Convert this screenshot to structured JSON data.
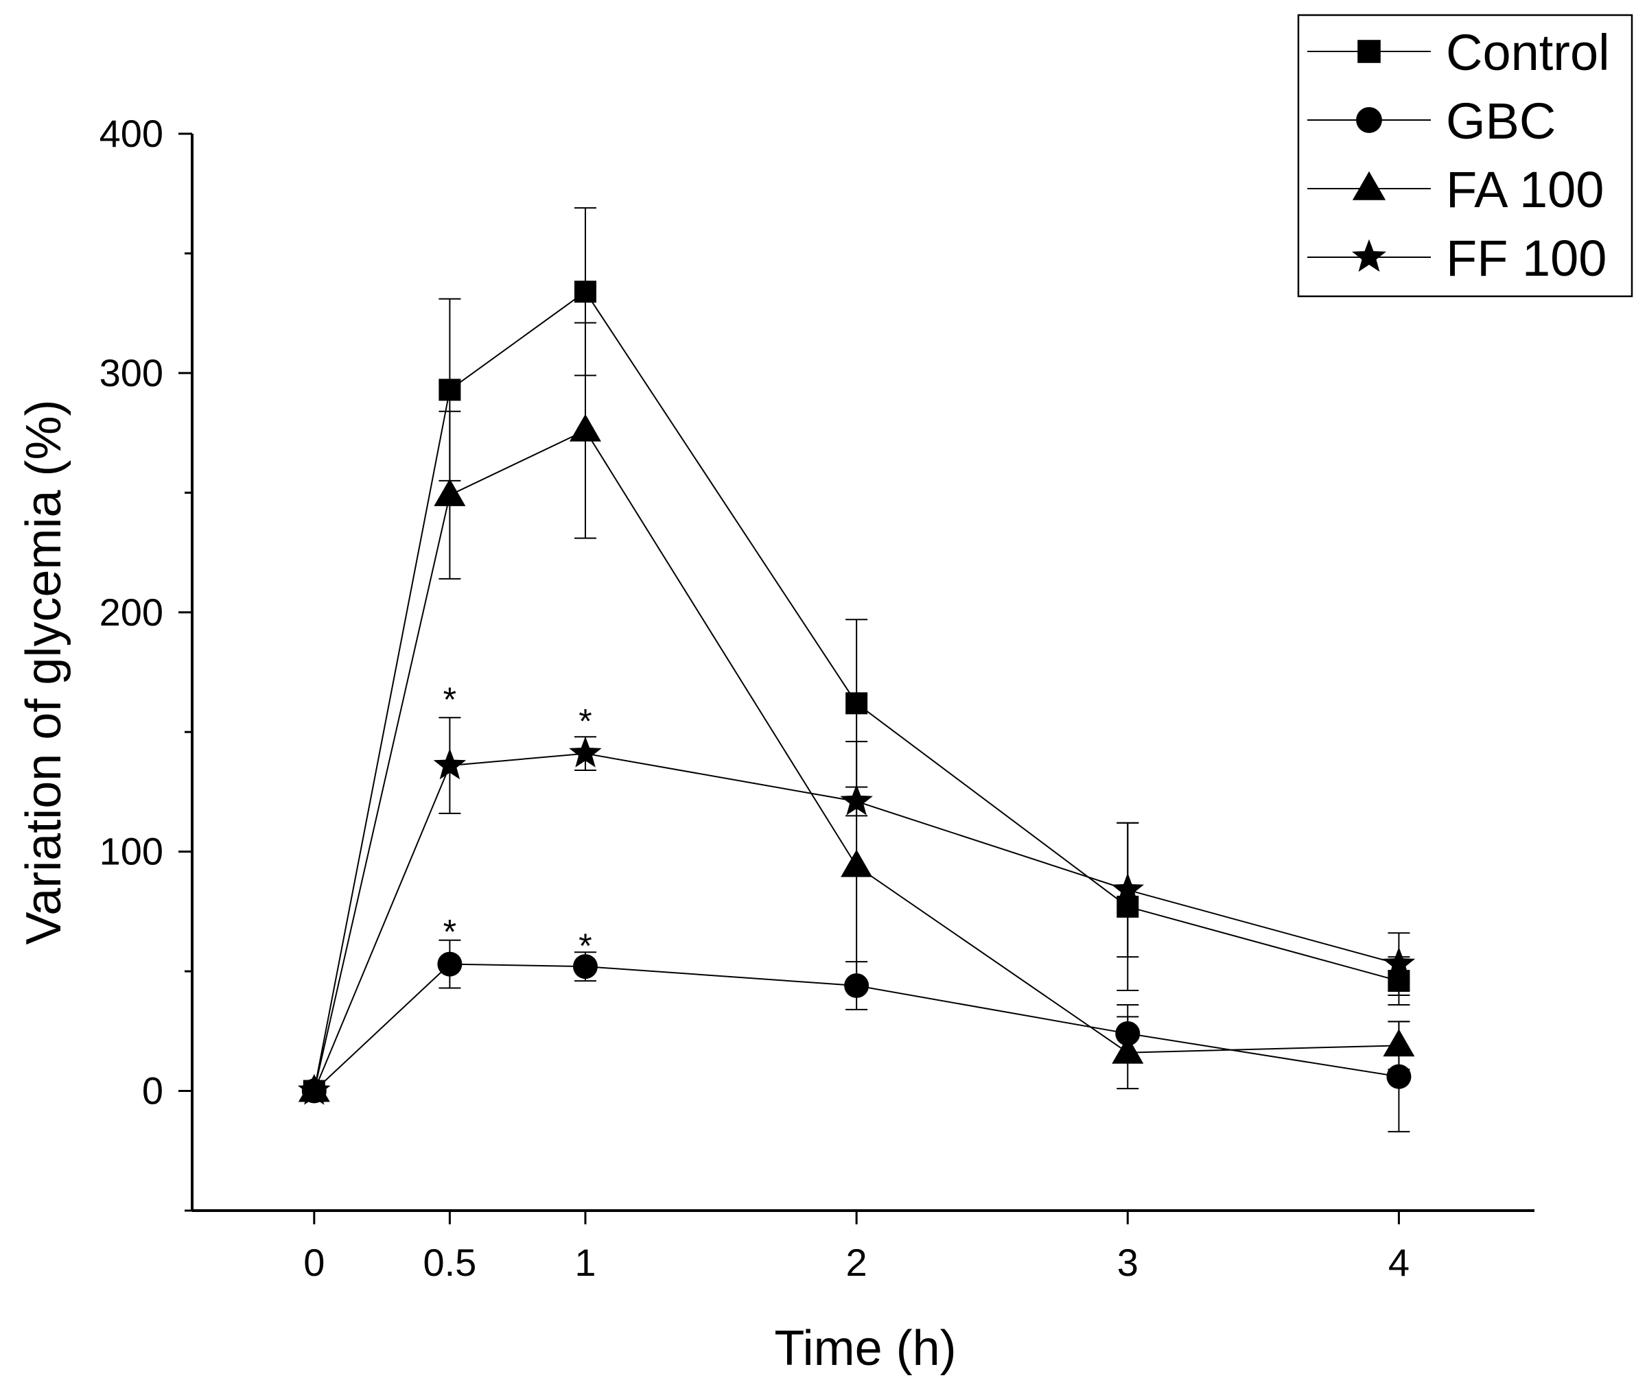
{
  "chart_data": {
    "type": "line",
    "title": "",
    "xlabel": "Time (h)",
    "ylabel": "Variation of glycemia (%)",
    "xlim": [
      -0.45,
      4.5
    ],
    "ylim": [
      -50,
      400
    ],
    "x_ticks": [
      0,
      0.5,
      1,
      2,
      3,
      4
    ],
    "x_tick_labels": [
      "0",
      "0.5",
      "1",
      "2",
      "3",
      "4"
    ],
    "y_ticks": [
      0,
      100,
      200,
      300,
      400
    ],
    "y_tick_labels": [
      "0",
      "100",
      "200",
      "300",
      "400"
    ],
    "legend_position": "top-right",
    "series": [
      {
        "name": "Control",
        "marker": "square",
        "x": [
          0,
          0.5,
          1,
          2,
          3,
          4
        ],
        "values": [
          0,
          293,
          334,
          162,
          77,
          46
        ],
        "errors": [
          0,
          38,
          35,
          35,
          35,
          10
        ]
      },
      {
        "name": "GBC",
        "marker": "circle",
        "x": [
          0,
          0.5,
          1,
          2,
          3,
          4
        ],
        "values": [
          0,
          53,
          52,
          44,
          24,
          6
        ],
        "errors": [
          0,
          10,
          6,
          10,
          12,
          23
        ]
      },
      {
        "name": "FA 100",
        "marker": "triangle",
        "x": [
          0,
          0.5,
          1,
          2,
          3,
          4
        ],
        "values": [
          0,
          249,
          276,
          94,
          16,
          19
        ],
        "errors": [
          0,
          35,
          45,
          52,
          15,
          10
        ]
      },
      {
        "name": "FF 100",
        "marker": "star",
        "x": [
          0,
          0.5,
          1,
          2,
          3,
          4
        ],
        "values": [
          0,
          136,
          141,
          121,
          84,
          53
        ],
        "errors": [
          0,
          20,
          7,
          6,
          28,
          13
        ]
      }
    ],
    "annotations": [
      {
        "text": "*",
        "x": 0.5,
        "y": 165
      },
      {
        "text": "*",
        "x": 1,
        "y": 156
      },
      {
        "text": "*",
        "x": 0.5,
        "y": 68
      },
      {
        "text": "*",
        "x": 1,
        "y": 62
      }
    ]
  }
}
